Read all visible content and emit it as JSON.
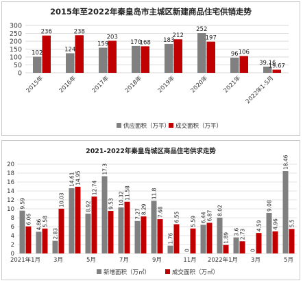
{
  "chart_data": [
    {
      "type": "bar",
      "title": "2015年至2022年秦皇岛市主城区新建商品住宅供销走势",
      "xlabel": "",
      "ylabel": "",
      "ylim": [
        0,
        300
      ],
      "yticks": [
        0,
        50,
        100,
        150,
        200,
        250,
        300
      ],
      "grid": true,
      "legend_position": "bottom",
      "categories": [
        "2015年",
        "2016年",
        "2017年",
        "2018年",
        "2019年",
        "2020年",
        "2021年",
        "2022年1-5月"
      ],
      "series": [
        {
          "name": "供应面积（万平）",
          "color": "#808080",
          "values": [
            102,
            124,
            159,
            170,
            183,
            252,
            96,
            39.16
          ],
          "labels": [
            "102",
            "124",
            "159",
            "170",
            "183",
            "252",
            "96",
            "39.16"
          ]
        },
        {
          "name": "成交面积（万平）",
          "color": "#c00000",
          "values": [
            236,
            238,
            203,
            168,
            212,
            197,
            106,
            19.67
          ],
          "labels": [
            "236",
            "238",
            "203",
            "168",
            "212",
            "197",
            "106",
            "19.67"
          ]
        }
      ]
    },
    {
      "type": "bar",
      "title": "2021-2022年秦皇岛城区商品住宅供求走势",
      "xlabel": "",
      "ylabel": "",
      "ylim": [
        0,
        20
      ],
      "yticks": [
        0,
        2,
        4,
        6,
        8,
        10,
        12,
        14,
        16,
        18,
        20
      ],
      "grid": true,
      "legend_position": "bottom",
      "tick_labels": [
        {
          "index": 0,
          "label": "2021年1月"
        },
        {
          "index": 2,
          "label": "3月"
        },
        {
          "index": 4,
          "label": "5月"
        },
        {
          "index": 6,
          "label": "7月"
        },
        {
          "index": 8,
          "label": "9月"
        },
        {
          "index": 10,
          "label": "11月"
        },
        {
          "index": 12,
          "label": "2022年1月"
        },
        {
          "index": 14,
          "label": "3月"
        },
        {
          "index": 16,
          "label": "5月"
        }
      ],
      "categories": [
        "2021年1月",
        "2021年2月",
        "2021年3月",
        "2021年4月",
        "2021年5月",
        "2021年6月",
        "2021年7月",
        "2021年8月",
        "2021年9月",
        "2021年10月",
        "2021年11月",
        "2021年12月",
        "2022年1月",
        "2022年2月",
        "2022年3月",
        "2022年4月",
        "2022年5月"
      ],
      "series": [
        {
          "name": "新增面积（万㎡）",
          "color": "#808080",
          "values": [
            9.59,
            4.86,
            2.83,
            14.61,
            8.92,
            17.3,
            10.32,
            7.27,
            11.8,
            1.76,
            0,
            6.44,
            8.02,
            3.6,
            0,
            9.08,
            18.46
          ],
          "labels": [
            "9.59",
            "4.86",
            "2.83",
            "14.61",
            "8.92",
            "17.3",
            "10.32",
            "7.27",
            "11.8",
            "1.76",
            "0",
            "6.44",
            "8.02",
            "3.6",
            "0",
            "9.08",
            "18.46"
          ]
        },
        {
          "name": "成交面积（万㎡）",
          "color": "#c00000",
          "values": [
            6.06,
            5.58,
            10.03,
            14.95,
            12.74,
            9.53,
            11.58,
            8.29,
            7.68,
            6.55,
            5.59,
            6.87,
            1.89,
            2.73,
            4.59,
            4.96,
            5.5
          ],
          "labels": [
            "6.06",
            "5.58",
            "10.03",
            "14.95",
            "12.74",
            "9.53",
            "11.58",
            "8.29",
            "7.68",
            "6.55",
            "5.59",
            "6.87",
            "1.89",
            "2.73",
            "4.59",
            "4.96",
            "5.5"
          ]
        }
      ]
    }
  ]
}
